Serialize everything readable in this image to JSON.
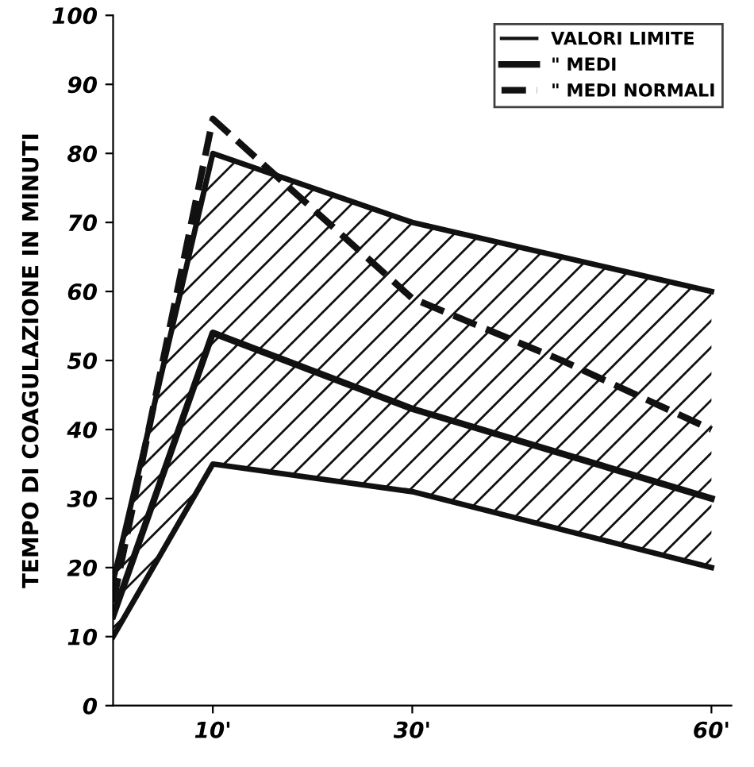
{
  "chart_data": {
    "type": "line",
    "ylabel": "TEMPO DI COAGULAZIONE IN MINUTI",
    "xlim": [
      0,
      62
    ],
    "ylim": [
      0,
      100
    ],
    "xticks": [
      {
        "value": 10,
        "label": "10'"
      },
      {
        "value": 30,
        "label": "30'"
      },
      {
        "value": 60,
        "label": "60'"
      }
    ],
    "yticks": [
      0,
      10,
      20,
      30,
      40,
      50,
      60,
      70,
      80,
      90,
      100
    ],
    "grid": false,
    "legend": "top right",
    "marker": "none",
    "series": [
      {
        "name": "VALORI LIMITE",
        "type": "line",
        "color": "#111111",
        "x": [
          0,
          10,
          30,
          60
        ],
        "values": [
          18,
          80,
          70,
          60
        ]
      },
      {
        "type": "line",
        "color": "#111111",
        "x": [
          0,
          10,
          30,
          60
        ],
        "values": [
          10,
          35,
          31,
          20
        ]
      },
      {
        "name": "\" MEDI",
        "color": "#111111",
        "line_style": "solid",
        "x": [
          0,
          10,
          30,
          60
        ],
        "values": [
          13,
          54,
          43,
          30
        ],
        "lower": [
          10,
          35,
          31,
          20
        ],
        "upper": [
          18,
          80,
          70,
          60
        ]
      },
      {
        "name": "\" MEDI NORMALI",
        "type": "line",
        "color": "#111111",
        "line_style": "dashed",
        "x": [
          0,
          10,
          20,
          30,
          45,
          60
        ],
        "values": [
          15,
          85,
          72,
          59,
          50,
          40
        ]
      }
    ]
  }
}
